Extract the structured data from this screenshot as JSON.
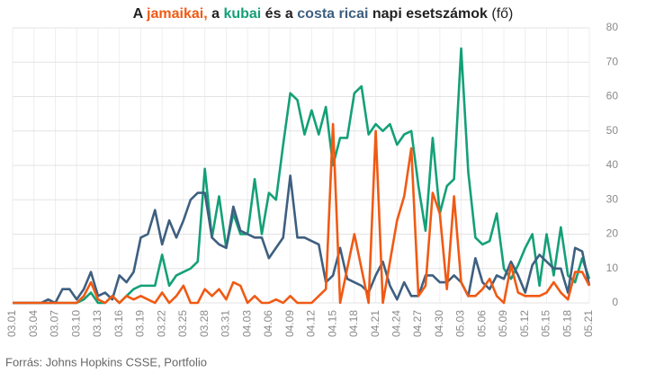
{
  "chart_data": {
    "type": "line",
    "title": [
      {
        "text": "A "
      },
      {
        "text": "jamaikai,",
        "color": "#f05a14"
      },
      {
        "text": " a "
      },
      {
        "text": "kubai",
        "color": "#14a077"
      },
      {
        "text": " és a "
      },
      {
        "text": "costa ricai",
        "color": "#3e5f80"
      },
      {
        "text": " napi esetszámok"
      },
      {
        "text": " (fő)",
        "weight": "normal"
      }
    ],
    "source": "Forrás: Johns Hopkins CSSE, Portfolio",
    "categories": [
      "03.01",
      null,
      null,
      "03.04",
      null,
      null,
      "03.07",
      null,
      null,
      "03.10",
      null,
      null,
      "03.13",
      null,
      null,
      "03.16",
      null,
      null,
      "03.19",
      null,
      null,
      "03.22",
      null,
      null,
      "03.25",
      null,
      null,
      "03.28",
      null,
      null,
      "03.31",
      null,
      null,
      "04.03",
      null,
      null,
      "04.06",
      null,
      null,
      "04.09",
      null,
      null,
      "04.12",
      null,
      null,
      "04.15",
      null,
      null,
      "04.18",
      null,
      null,
      "04.21",
      null,
      null,
      "04.24",
      null,
      null,
      "04.27",
      null,
      null,
      "04.30",
      null,
      null,
      "05.03",
      null,
      null,
      "05.06",
      null,
      null,
      "05.09",
      null,
      null,
      "05.12",
      null,
      null,
      "05.15",
      null,
      null,
      "05.18",
      null,
      null,
      "05.21"
    ],
    "series": [
      {
        "color": "#14a077",
        "values": [
          0,
          0,
          0,
          0,
          0,
          0,
          0,
          0,
          0,
          0,
          1,
          3,
          0,
          0,
          2,
          0,
          2,
          4,
          5,
          5,
          5,
          14,
          5,
          8,
          9,
          10,
          12,
          39,
          19,
          31,
          16,
          26,
          20,
          20,
          36,
          20,
          32,
          30,
          46,
          61,
          59,
          49,
          56,
          49,
          57,
          40,
          48,
          48,
          61,
          63,
          49,
          52,
          50,
          52,
          46,
          49,
          50,
          34,
          21,
          48,
          26,
          34,
          36,
          74,
          38,
          19,
          17,
          18,
          26,
          10,
          7,
          11,
          16,
          20,
          5,
          20,
          8,
          22,
          8,
          6,
          13,
          7
        ]
      },
      {
        "color": "#3e5f80",
        "values": [
          0,
          0,
          0,
          0,
          0,
          1,
          0,
          4,
          4,
          1,
          4,
          9,
          2,
          3,
          1,
          8,
          6,
          9,
          19,
          20,
          27,
          17,
          24,
          19,
          24,
          30,
          32,
          32,
          19,
          17,
          16,
          28,
          21,
          20,
          19,
          19,
          13,
          16,
          19,
          37,
          19,
          19,
          18,
          17,
          6,
          8,
          16,
          7,
          6,
          5,
          3,
          8,
          12,
          5,
          1,
          6,
          2,
          2,
          8,
          8,
          6,
          6,
          8,
          6,
          2,
          13,
          6,
          4,
          8,
          7,
          12,
          8,
          3,
          11,
          14,
          12,
          10,
          10,
          3,
          16,
          15,
          5
        ]
      },
      {
        "color": "#f05a14",
        "values": [
          0,
          0,
          0,
          0,
          0,
          0,
          0,
          0,
          0,
          0,
          2,
          6,
          1,
          0,
          2,
          0,
          2,
          1,
          2,
          1,
          0,
          3,
          0,
          2,
          5,
          0,
          0,
          4,
          2,
          4,
          1,
          6,
          5,
          0,
          2,
          0,
          0,
          1,
          0,
          2,
          0,
          0,
          0,
          2,
          4,
          52,
          0,
          10,
          20,
          10,
          0,
          50,
          0,
          12,
          24,
          31,
          45,
          2,
          5,
          32,
          26,
          4,
          31,
          6,
          2,
          2,
          4,
          7,
          2,
          0,
          11,
          3,
          2,
          2,
          2,
          3,
          6,
          3,
          1,
          9,
          9,
          5
        ]
      }
    ],
    "ylim": [
      0,
      80
    ],
    "yticks": [
      0,
      10,
      20,
      30,
      40,
      50,
      60,
      70,
      80
    ],
    "grid": true
  }
}
